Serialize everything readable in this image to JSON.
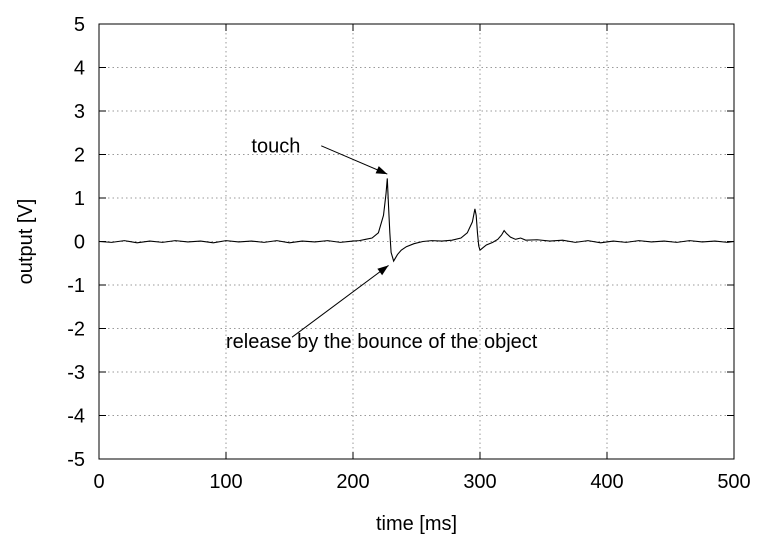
{
  "chart_data": {
    "type": "line",
    "title": "",
    "xlabel": "time [ms]",
    "ylabel": "output [V]",
    "xlim": [
      0,
      500
    ],
    "ylim": [
      -5,
      5
    ],
    "x_ticks": [
      0,
      100,
      200,
      300,
      400,
      500
    ],
    "y_ticks": [
      -5,
      -4,
      -3,
      -2,
      -1,
      0,
      1,
      2,
      3,
      4,
      5
    ],
    "grid": true,
    "line_color": "#000000",
    "series": [
      {
        "points": [
          [
            0,
            0
          ],
          [
            10,
            -0.02
          ],
          [
            20,
            0.02
          ],
          [
            30,
            -0.03
          ],
          [
            40,
            0.01
          ],
          [
            50,
            -0.02
          ],
          [
            60,
            0.02
          ],
          [
            70,
            -0.01
          ],
          [
            80,
            0.01
          ],
          [
            90,
            -0.03
          ],
          [
            100,
            0.02
          ],
          [
            110,
            -0.01
          ],
          [
            120,
            0.01
          ],
          [
            130,
            -0.02
          ],
          [
            140,
            0.02
          ],
          [
            150,
            -0.03
          ],
          [
            160,
            0.01
          ],
          [
            170,
            -0.01
          ],
          [
            180,
            0.02
          ],
          [
            190,
            -0.02
          ],
          [
            200,
            0.01
          ],
          [
            205,
            0.02
          ],
          [
            210,
            0.05
          ],
          [
            215,
            0.08
          ],
          [
            220,
            0.2
          ],
          [
            224,
            0.6
          ],
          [
            226,
            1.1
          ],
          [
            227,
            1.45
          ],
          [
            228,
            0.8
          ],
          [
            229,
            0.2
          ],
          [
            230,
            -0.25
          ],
          [
            232,
            -0.45
          ],
          [
            235,
            -0.3
          ],
          [
            238,
            -0.2
          ],
          [
            242,
            -0.12
          ],
          [
            248,
            -0.05
          ],
          [
            255,
            0.0
          ],
          [
            262,
            0.02
          ],
          [
            270,
            0.01
          ],
          [
            278,
            0.03
          ],
          [
            285,
            0.08
          ],
          [
            290,
            0.2
          ],
          [
            294,
            0.45
          ],
          [
            296,
            0.75
          ],
          [
            297,
            0.6
          ],
          [
            298,
            0.2
          ],
          [
            299,
            -0.1
          ],
          [
            300,
            -0.2
          ],
          [
            302,
            -0.15
          ],
          [
            305,
            -0.08
          ],
          [
            310,
            -0.02
          ],
          [
            314,
            0.05
          ],
          [
            317,
            0.15
          ],
          [
            319,
            0.25
          ],
          [
            321,
            0.18
          ],
          [
            324,
            0.1
          ],
          [
            328,
            0.05
          ],
          [
            332,
            0.08
          ],
          [
            336,
            0.03
          ],
          [
            345,
            0.04
          ],
          [
            355,
            0.01
          ],
          [
            365,
            0.03
          ],
          [
            375,
            -0.02
          ],
          [
            385,
            0.02
          ],
          [
            395,
            -0.03
          ],
          [
            405,
            0.01
          ],
          [
            415,
            -0.02
          ],
          [
            425,
            0.02
          ],
          [
            435,
            -0.01
          ],
          [
            445,
            0.01
          ],
          [
            455,
            -0.02
          ],
          [
            465,
            0.02
          ],
          [
            475,
            -0.01
          ],
          [
            485,
            0.01
          ],
          [
            495,
            -0.02
          ],
          [
            500,
            0.0
          ]
        ]
      }
    ],
    "annotations": [
      {
        "text": "touch",
        "text_at": [
          120,
          2.05
        ],
        "arrow_from": [
          175,
          2.2
        ],
        "arrow_to": [
          227,
          1.55
        ]
      },
      {
        "text": "release by the bounce of the object",
        "text_at": [
          100,
          -2.45
        ],
        "arrow_from": [
          152,
          -2.2
        ],
        "arrow_to": [
          228,
          -0.55
        ]
      }
    ]
  }
}
